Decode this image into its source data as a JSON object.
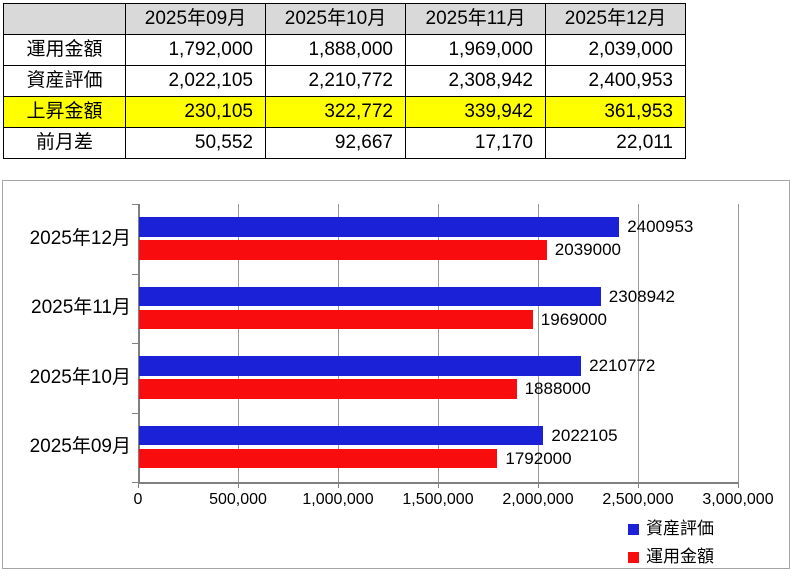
{
  "table": {
    "corner_label": "",
    "columns": [
      "2025年09月",
      "2025年10月",
      "2025年11月",
      "2025年12月"
    ],
    "rows": [
      {
        "label": "運用金額",
        "values": [
          "1,792,000",
          "1,888,000",
          "1,969,000",
          "2,039,000"
        ],
        "highlight": false
      },
      {
        "label": "資産評価",
        "values": [
          "2,022,105",
          "2,210,772",
          "2,308,942",
          "2,400,953"
        ],
        "highlight": false
      },
      {
        "label": "上昇金額",
        "values": [
          "230,105",
          "322,772",
          "339,942",
          "361,953"
        ],
        "highlight": true
      },
      {
        "label": "前月差",
        "values": [
          "50,552",
          "92,667",
          "17,170",
          "22,011"
        ],
        "highlight": false
      }
    ],
    "colors": {
      "header_bg": "#d9d9d9",
      "highlight_bg": "#ffff00",
      "border": "#000000"
    }
  },
  "chart_data": {
    "type": "bar",
    "orientation": "horizontal",
    "title": "",
    "categories": [
      "2025年12月",
      "2025年11月",
      "2025年10月",
      "2025年09月"
    ],
    "series": [
      {
        "name": "資産評価",
        "color": "#1a21d6",
        "values": [
          2400953,
          2308942,
          2210772,
          2022105
        ]
      },
      {
        "name": "運用金額",
        "color": "#f80c0e",
        "values": [
          2039000,
          1969000,
          1888000,
          1792000
        ]
      }
    ],
    "xlim": [
      0,
      3000000
    ],
    "x_tick_values": [
      0,
      500000,
      1000000,
      1500000,
      2000000,
      2500000,
      3000000
    ],
    "x_tick_labels": [
      "0",
      "500,000",
      "1,000,000",
      "1,500,000",
      "2,000,000",
      "2,500,000",
      "3,000,000"
    ],
    "grid": true,
    "data_labels": true,
    "legend_position": "bottom-right",
    "colors": {
      "axis": "#808080",
      "gridline": "#9a9a9a",
      "plot_border": "#a6a6a6"
    }
  }
}
